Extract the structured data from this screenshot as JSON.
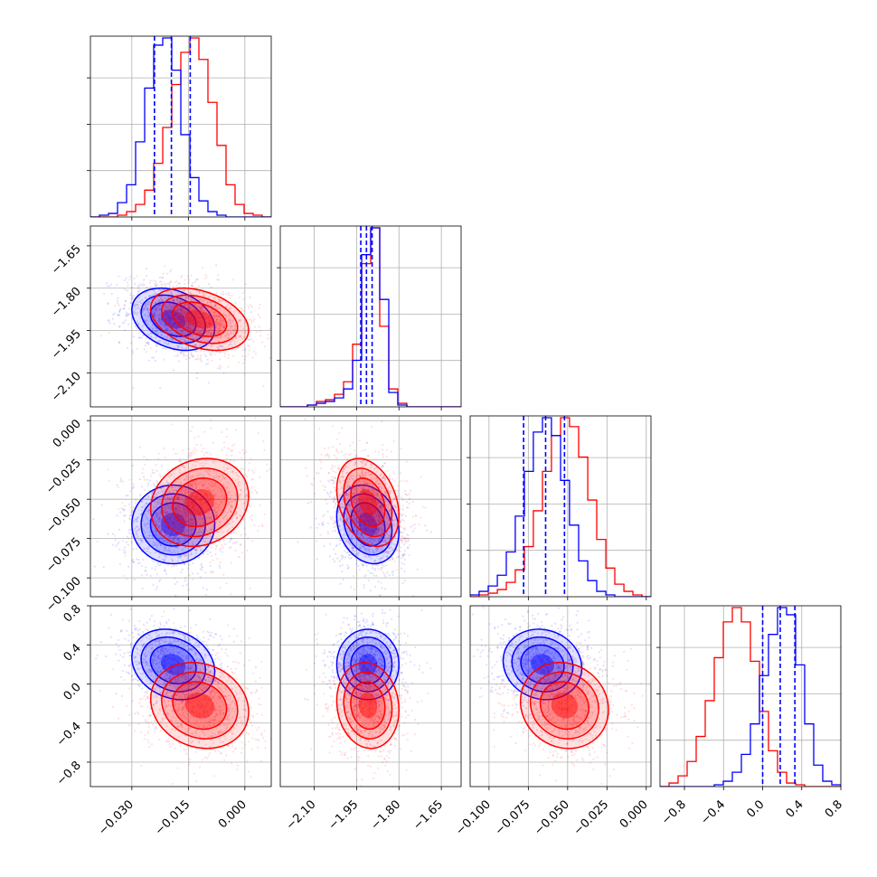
{
  "colors": {
    "series_a": "#0000ff",
    "series_b": "#ff0000",
    "grid": "#b0b0b0",
    "frame": "#000000"
  },
  "chart_data": {
    "type": "corner",
    "parameters": [
      {
        "range": [
          -0.041,
          0.007
        ],
        "ticks": [
          -0.03,
          -0.015,
          0.0
        ],
        "tick_labels": [
          "−0.030",
          "−0.015",
          "0.000"
        ]
      },
      {
        "range": [
          -2.22,
          -1.58
        ],
        "ticks": [
          -2.1,
          -1.95,
          -1.8,
          -1.65
        ],
        "tick_labels": [
          "−2.10",
          "−1.95",
          "−1.80",
          "−1.65"
        ]
      },
      {
        "range": [
          -0.112,
          0.003
        ],
        "ticks": [
          -0.1,
          -0.075,
          -0.05,
          -0.025,
          0.0
        ],
        "tick_labels": [
          "−0.100",
          "−0.075",
          "−0.050",
          "−0.025",
          "0.000"
        ]
      },
      {
        "range": [
          -1.05,
          0.8
        ],
        "ticks": [
          -0.8,
          -0.4,
          0.0,
          0.4,
          0.8
        ],
        "tick_labels": [
          "−0.8",
          "−0.4",
          "0.0",
          "0.4",
          "0.8"
        ]
      }
    ],
    "series": [
      {
        "color": "#0000ff",
        "means": [
          -0.019,
          -1.91,
          -0.066,
          0.2
        ],
        "sigmas": [
          0.0055,
          0.055,
          0.0125,
          0.18
        ],
        "correlations": {
          "0-1": -0.3,
          "0-2": 0.0,
          "0-3": -0.2,
          "1-2": -0.2,
          "1-3": 0.0,
          "2-3": -0.1
        },
        "quantile_lines": [
          [
            -0.024,
            -0.0195,
            -0.0145
          ],
          [
            -1.935,
            -1.915,
            -1.895
          ],
          [
            -0.078,
            -0.064,
            -0.052
          ],
          [
            0.0,
            0.18,
            0.33
          ]
        ]
      },
      {
        "color": "#ff0000",
        "means": [
          -0.012,
          -1.91,
          -0.052,
          -0.22
        ],
        "sigmas": [
          0.0065,
          0.055,
          0.014,
          0.22
        ],
        "correlations": {
          "0-1": -0.35,
          "0-2": 0.15,
          "0-3": -0.15,
          "1-2": -0.3,
          "1-3": -0.1,
          "2-3": -0.1
        },
        "quantile_lines": []
      }
    ],
    "histograms": [
      {
        "edges": [
          -0.041,
          -0.0386,
          -0.0362,
          -0.0338,
          -0.0314,
          -0.029,
          -0.0266,
          -0.0242,
          -0.0218,
          -0.0194,
          -0.017,
          -0.0146,
          -0.0122,
          -0.0098,
          -0.0074,
          -0.005,
          -0.0026,
          -0.0002,
          0.0022,
          0.0046,
          0.007
        ],
        "blue": [
          0,
          1,
          2,
          8,
          18,
          42,
          72,
          96,
          100,
          82,
          46,
          22,
          9,
          3,
          1,
          0,
          0,
          0,
          0,
          0
        ],
        "red": [
          0,
          0,
          0,
          1,
          3,
          7,
          15,
          30,
          50,
          74,
          92,
          100,
          88,
          64,
          40,
          18,
          7,
          2,
          1,
          0
        ]
      },
      {
        "edges": [
          -2.22,
          -2.188,
          -2.156,
          -2.124,
          -2.092,
          -2.06,
          -2.028,
          -1.996,
          -1.964,
          -1.932,
          -1.9,
          -1.868,
          -1.836,
          -1.804,
          -1.772,
          -1.74,
          -1.708,
          -1.676,
          -1.644,
          -1.612,
          -1.58
        ],
        "blue": [
          0,
          0,
          0,
          1,
          2,
          3,
          5,
          10,
          26,
          85,
          100,
          60,
          8,
          1,
          0,
          0,
          0,
          0,
          0,
          0
        ],
        "red": [
          0,
          0,
          0,
          1,
          3,
          4,
          7,
          14,
          35,
          80,
          100,
          45,
          10,
          2,
          0,
          0,
          0,
          0,
          0,
          0
        ]
      },
      {
        "edges": [
          -0.112,
          -0.1063,
          -0.1005,
          -0.0947,
          -0.089,
          -0.0833,
          -0.0775,
          -0.0718,
          -0.066,
          -0.0603,
          -0.0545,
          -0.0488,
          -0.043,
          -0.0372,
          -0.0315,
          -0.0257,
          -0.02,
          -0.0142,
          -0.0085,
          -0.0027,
          0.003
        ],
        "blue": [
          1,
          3,
          6,
          12,
          25,
          45,
          70,
          92,
          100,
          90,
          65,
          40,
          20,
          9,
          3,
          1,
          0,
          0,
          0,
          0
        ],
        "red": [
          0,
          1,
          2,
          4,
          8,
          15,
          28,
          48,
          70,
          90,
          100,
          95,
          78,
          54,
          32,
          16,
          7,
          3,
          1,
          0
        ]
      },
      {
        "edges": [
          -1.05,
          -0.9575,
          -0.865,
          -0.7725,
          -0.68,
          -0.5875,
          -0.495,
          -0.4025,
          -0.31,
          -0.2175,
          -0.125,
          -0.0325,
          0.06,
          0.1525,
          0.245,
          0.3375,
          0.43,
          0.5225,
          0.615,
          0.7075,
          0.8
        ],
        "blue": [
          0,
          0,
          0,
          0,
          0,
          0,
          1,
          3,
          8,
          18,
          35,
          62,
          85,
          100,
          96,
          68,
          35,
          12,
          3,
          1
        ],
        "red": [
          0,
          2,
          6,
          14,
          28,
          48,
          72,
          92,
          100,
          92,
          70,
          42,
          20,
          8,
          2,
          1,
          0,
          0,
          0,
          0
        ]
      }
    ]
  }
}
